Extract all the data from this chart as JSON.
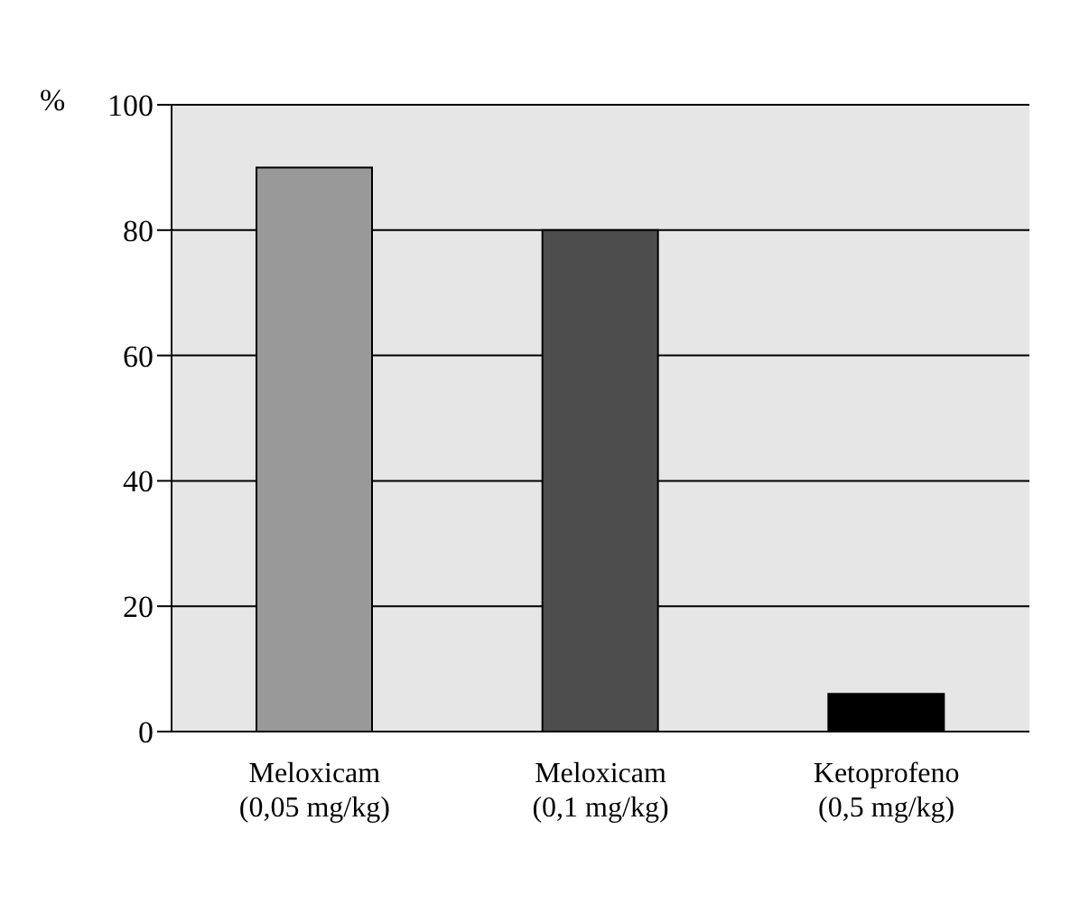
{
  "chart_data": {
    "type": "bar",
    "ylabel": "%",
    "categories": [
      "Meloxicam\n(0,05 mg/kg)",
      "Meloxicam\n(0,1 mg/kg)",
      "Ketoprofeno\n(0,5 mg/kg)"
    ],
    "values": [
      90,
      80,
      6
    ],
    "colors": [
      "#999999",
      "#4d4d4d",
      "#000000"
    ],
    "ylim": [
      0,
      100
    ],
    "yticks": [
      0,
      20,
      40,
      60,
      80,
      100
    ],
    "grid": "y"
  }
}
